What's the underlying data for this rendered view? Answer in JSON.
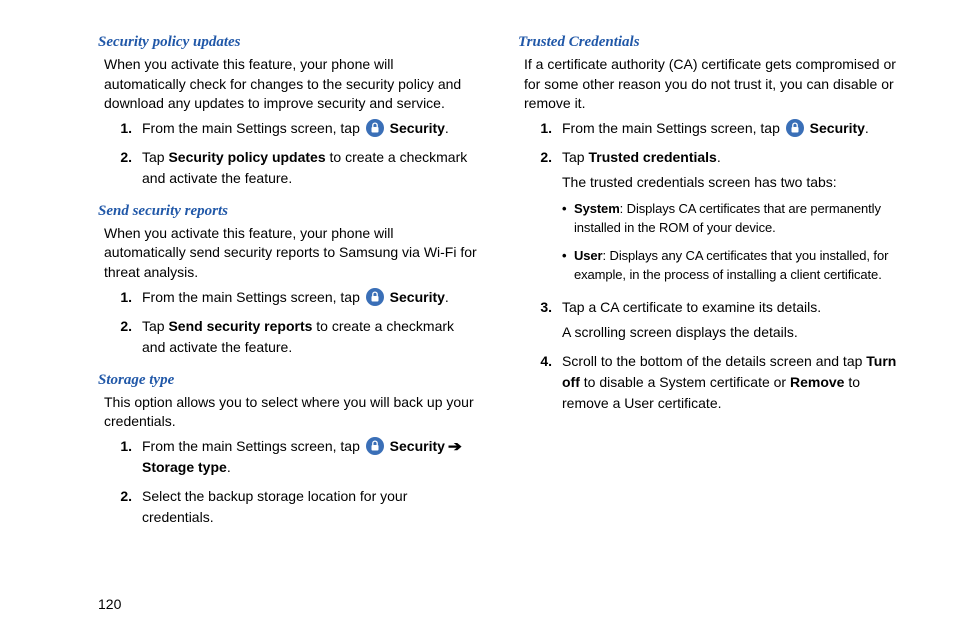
{
  "pageNumber": "120",
  "icon": {
    "bg": "#3a6fb7",
    "fg": "#ffffff"
  },
  "headingColor": "#2158a8",
  "left": {
    "sections": [
      {
        "heading": "Security policy updates",
        "intro": "When you activate this feature, your phone will automatically check for changes to the security policy and download any updates to improve security and service.",
        "steps": [
          {
            "num": "1.",
            "pre": "From the main Settings screen, tap ",
            "hasIcon": true,
            "post": " ",
            "bold1": "Security",
            "tail": "."
          },
          {
            "num": "2.",
            "pre": "Tap ",
            "bold1": "Security policy updates",
            "tail": " to create a checkmark and activate the feature."
          }
        ]
      },
      {
        "heading": "Send security reports",
        "intro": "When you activate this feature, your phone will automatically send security reports to Samsung via Wi-Fi for threat analysis.",
        "steps": [
          {
            "num": "1.",
            "pre": "From the main Settings screen, tap ",
            "hasIcon": true,
            "post": " ",
            "bold1": "Security",
            "tail": "."
          },
          {
            "num": "2.",
            "pre": "Tap ",
            "bold1": "Send security reports",
            "tail": " to create a checkmark and activate the feature."
          }
        ]
      },
      {
        "heading": "Storage type",
        "intro": "This option allows you to select where you will back up your credentials.",
        "steps": [
          {
            "num": "1.",
            "pre": "From the main Settings screen, tap ",
            "hasIcon": true,
            "post": " ",
            "bold1": "Security",
            "between": " ",
            "arrow": "➔",
            "between2": " ",
            "bold2": "Storage type",
            "tail": "."
          },
          {
            "num": "2.",
            "pre": "Select the backup storage location for your credentials."
          }
        ]
      }
    ]
  },
  "right": {
    "sections": [
      {
        "heading": "Trusted Credentials",
        "intro": "If a certificate authority (CA) certificate gets compromised or for some other reason you do not trust it, you can disable or remove it.",
        "steps": [
          {
            "num": "1.",
            "pre": "From the main Settings screen, tap ",
            "hasIcon": true,
            "post": " ",
            "bold1": "Security",
            "tail": "."
          },
          {
            "num": "2.",
            "pre": "Tap ",
            "bold1": "Trusted credentials",
            "tail": ".",
            "extraLine": "The trusted credentials screen has two tabs:",
            "bullets": [
              {
                "bold": "System",
                "text": ": Displays CA certificates that are permanently installed in the ROM of your device."
              },
              {
                "bold": "User",
                "text": ": Displays any CA certificates that you installed, for example, in the process of installing a client certificate."
              }
            ]
          },
          {
            "num": "3.",
            "pre": "Tap a CA certificate to examine its details.",
            "extraLine": "A scrolling screen displays the details."
          },
          {
            "num": "4.",
            "pre": "Scroll to the bottom of the details screen and tap ",
            "bold1": "Turn off",
            "mid": " to disable a System certificate or ",
            "bold2": "Remove",
            "tail": " to remove a User certificate."
          }
        ]
      }
    ]
  }
}
